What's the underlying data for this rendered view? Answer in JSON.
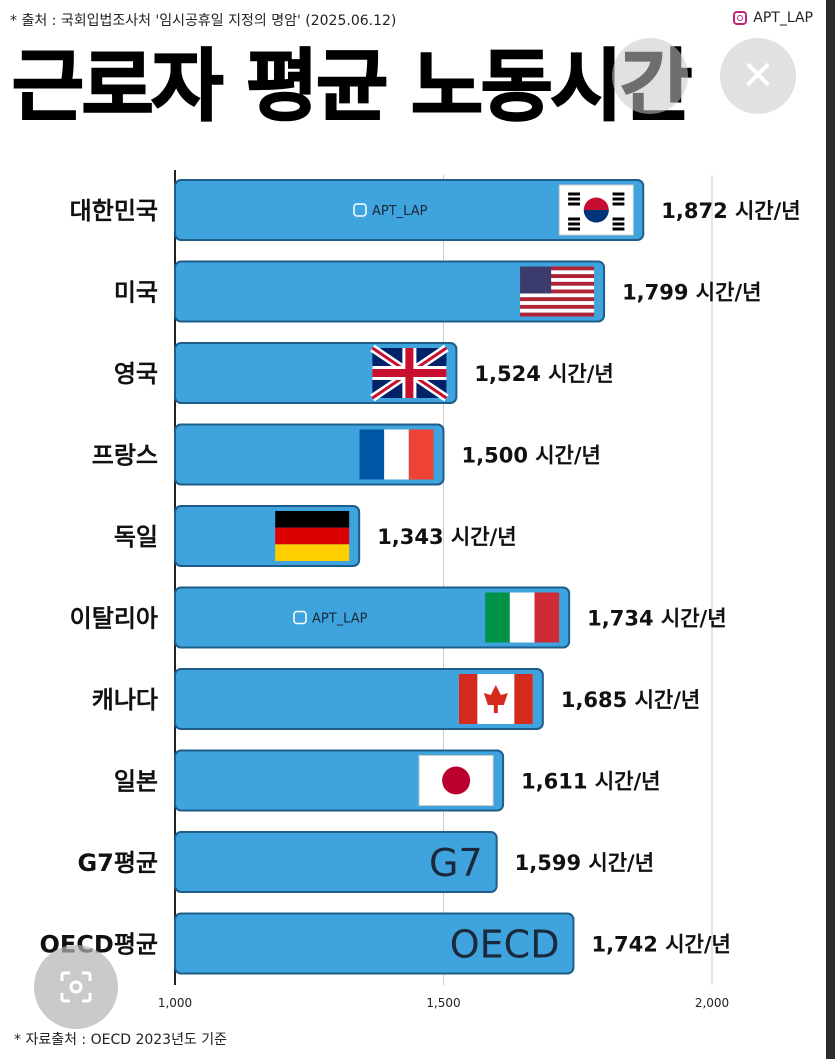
{
  "header": {
    "source": "* 출처 : 국회입법조사처 '임시공휴일 지정의 명암' (2025.06.12)",
    "handle": "APT_LAP",
    "title": "근로자 평균 노동시간"
  },
  "footer": {
    "note": "* 자료출처 : OECD 2023년도 기준"
  },
  "colors": {
    "bar": "#3fa3dd",
    "bar_edge": "#1f5d8a",
    "axis": "#222222"
  },
  "chart_data": {
    "type": "bar",
    "orientation": "horizontal",
    "title": "근로자 평균 노동시간",
    "categories": [
      "대한민국",
      "미국",
      "영국",
      "프랑스",
      "독일",
      "이탈리아",
      "캐나다",
      "일본",
      "G7평균",
      "OECD평균"
    ],
    "values": [
      1872,
      1799,
      1524,
      1500,
      1343,
      1734,
      1685,
      1611,
      1599,
      1742
    ],
    "value_labels": [
      "1,872 시간/년",
      "1,799 시간/년",
      "1,524 시간/년",
      "1,500 시간/년",
      "1,343 시간/년",
      "1,734 시간/년",
      "1,685 시간/년",
      "1,611 시간/년",
      "1,599 시간/년",
      "1,742 시간/년"
    ],
    "bar_markers": [
      "flag-korea",
      "flag-usa",
      "flag-uk",
      "flag-france",
      "flag-germany",
      "flag-italy",
      "flag-canada",
      "flag-japan",
      "G7",
      "OECD"
    ],
    "watermark_rows": [
      0,
      5
    ],
    "watermark_text": "APT_LAP",
    "xlim": [
      1000,
      2000
    ],
    "xticks": [
      1000,
      1500,
      2000
    ],
    "xtick_labels": [
      "1,000",
      "1,500",
      "2,000"
    ],
    "grid": true
  }
}
